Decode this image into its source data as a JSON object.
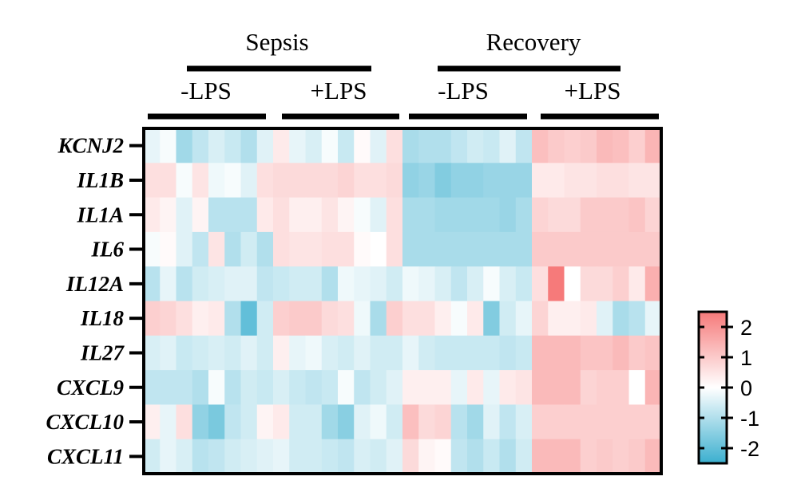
{
  "chart_data": {
    "type": "heatmap",
    "title": "",
    "groups": [
      {
        "label": "Sepsis",
        "conditions": [
          "-LPS",
          "+LPS"
        ]
      },
      {
        "label": "Recovery",
        "conditions": [
          "-LPS",
          "+LPS"
        ]
      }
    ],
    "samples_per_condition": 8,
    "rows": [
      "KCNJ2",
      "IL1B",
      "IL1A",
      "IL6",
      "IL12A",
      "IL18",
      "IL27",
      "CXCL9",
      "CXCL10",
      "CXCL11"
    ],
    "colorbar": {
      "ticks": [
        "2",
        "1",
        "0",
        "-1",
        "-2"
      ],
      "tick_values": [
        2,
        1,
        0,
        -1,
        -2
      ],
      "range": [
        -2.5,
        2.5
      ],
      "low_color": "#3bafcf",
      "mid_color": "#ffffff",
      "high_color": "#f67a7a"
    },
    "values": [
      [
        -0.3,
        -0.1,
        -1.2,
        -0.8,
        -0.5,
        -0.7,
        -1.0,
        -0.4,
        0.4,
        -0.3,
        -0.5,
        -0.1,
        -0.7,
        0.1,
        -0.4,
        0.6,
        -1.1,
        -1.0,
        -1.0,
        -0.8,
        -0.6,
        -0.7,
        -0.4,
        -0.8,
        1.2,
        1.0,
        0.9,
        1.0,
        1.3,
        1.2,
        0.9,
        1.4
      ],
      [
        0.6,
        0.6,
        -0.1,
        0.5,
        -0.2,
        -0.1,
        -0.4,
        0.6,
        0.7,
        0.7,
        0.7,
        0.7,
        0.8,
        0.6,
        0.6,
        0.7,
        -1.4,
        -1.3,
        -1.6,
        -1.4,
        -1.4,
        -1.3,
        -1.3,
        -1.3,
        0.4,
        0.4,
        0.5,
        0.5,
        0.6,
        0.6,
        0.5,
        0.5
      ],
      [
        0.4,
        0.2,
        -0.4,
        0.2,
        -0.9,
        -0.9,
        -0.9,
        0.4,
        0.6,
        0.3,
        0.3,
        0.5,
        0.2,
        -0.1,
        -0.4,
        0.6,
        -1.1,
        -1.1,
        -1.2,
        -1.2,
        -1.2,
        -1.2,
        -1.3,
        -1.1,
        0.8,
        0.7,
        0.7,
        1.0,
        1.0,
        1.0,
        1.1,
        0.8
      ],
      [
        -0.1,
        0.1,
        -0.4,
        -0.8,
        0.5,
        -1.0,
        -0.6,
        -1.0,
        0.6,
        0.5,
        0.5,
        0.6,
        0.6,
        0.1,
        0.0,
        0.6,
        -1.1,
        -1.1,
        -1.1,
        -1.1,
        -1.1,
        -1.1,
        -1.1,
        -1.1,
        1.0,
        1.0,
        1.0,
        1.0,
        1.0,
        1.0,
        1.0,
        1.0
      ],
      [
        -0.9,
        -0.3,
        -0.9,
        -0.6,
        -0.5,
        -0.4,
        -0.4,
        -0.8,
        -0.7,
        -0.6,
        -0.6,
        -1.0,
        -0.2,
        -0.3,
        -0.4,
        -0.6,
        -0.2,
        -0.3,
        -0.5,
        -0.8,
        -0.5,
        -0.1,
        -0.5,
        -0.7,
        0.6,
        2.5,
        0.0,
        0.7,
        0.7,
        0.9,
        0.4,
        1.5
      ],
      [
        0.9,
        0.8,
        0.6,
        0.3,
        0.4,
        -1.0,
        -2.0,
        -0.6,
        0.9,
        1.0,
        1.0,
        0.7,
        0.6,
        -0.2,
        -1.1,
        0.9,
        0.6,
        0.6,
        0.3,
        -0.1,
        0.4,
        -1.6,
        -0.6,
        -0.3,
        0.8,
        0.3,
        0.3,
        0.4,
        -0.4,
        -1.1,
        -0.9,
        -0.3
      ],
      [
        -0.5,
        -0.4,
        -0.7,
        -0.6,
        -0.5,
        -0.6,
        -0.4,
        -0.6,
        0.3,
        -0.3,
        -0.2,
        -0.5,
        -0.6,
        -0.4,
        -0.6,
        -0.6,
        -0.3,
        -0.6,
        -0.7,
        -0.7,
        -0.7,
        -0.7,
        -0.8,
        -0.7,
        1.3,
        1.3,
        1.3,
        1.1,
        1.1,
        1.3,
        1.0,
        1.1
      ],
      [
        -0.8,
        -0.8,
        -0.8,
        -1.0,
        -0.1,
        -0.9,
        -0.6,
        -0.7,
        -0.5,
        -0.7,
        -0.8,
        -0.7,
        -0.1,
        -0.8,
        -0.6,
        -0.4,
        0.3,
        0.3,
        0.3,
        -0.3,
        0.4,
        -0.3,
        0.4,
        0.5,
        1.3,
        1.3,
        1.3,
        0.8,
        0.9,
        0.9,
        0.0,
        1.4
      ],
      [
        0.3,
        -0.3,
        0.6,
        -1.4,
        -1.7,
        -0.8,
        -0.6,
        0.2,
        0.4,
        -0.6,
        -0.6,
        -1.2,
        -1.5,
        -0.4,
        -0.2,
        -0.6,
        1.2,
        0.7,
        0.8,
        -0.9,
        -1.2,
        -0.4,
        -0.8,
        -0.5,
        0.9,
        0.9,
        0.9,
        0.9,
        0.9,
        0.9,
        0.9,
        0.9
      ],
      [
        -0.6,
        -0.3,
        -0.5,
        -0.9,
        -0.8,
        -0.6,
        -0.5,
        -0.4,
        -0.3,
        -0.6,
        -0.6,
        -0.7,
        -0.8,
        -0.5,
        -0.6,
        -0.4,
        0.7,
        0.2,
        0.1,
        -0.8,
        -1.0,
        -0.7,
        -1.0,
        -0.6,
        1.3,
        1.3,
        1.3,
        0.9,
        1.0,
        0.9,
        1.0,
        1.3
      ]
    ]
  }
}
